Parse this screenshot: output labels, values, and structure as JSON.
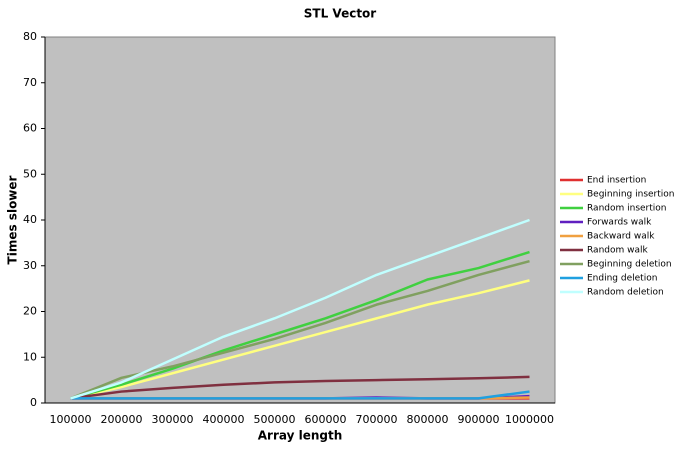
{
  "chart_data": {
    "type": "line",
    "title": "STL Vector",
    "x_label": "Array length",
    "y_label": "Times slower",
    "categories": [
      "100000",
      "200000",
      "300000",
      "400000",
      "500000",
      "600000",
      "700000",
      "800000",
      "900000",
      "1000000"
    ],
    "ylim": [
      0,
      80
    ],
    "yticks": [
      0,
      10,
      20,
      30,
      40,
      50,
      60,
      70,
      80
    ],
    "grid": false,
    "plot_background": "#c0c0c0",
    "legend": "right",
    "series": [
      {
        "name": "End insertion",
        "color": "#e03030",
        "values": [
          1,
          1,
          1,
          1,
          1,
          1,
          1,
          1,
          1,
          1
        ]
      },
      {
        "name": "Beginning insertion",
        "color": "#ffff80",
        "values": [
          1,
          3.5,
          6.5,
          9.5,
          12.5,
          15.5,
          18.5,
          21.5,
          24,
          26.8
        ]
      },
      {
        "name": "Random insertion",
        "color": "#40d040",
        "values": [
          1,
          4,
          7.5,
          11.5,
          15,
          18.5,
          22.5,
          27,
          29.5,
          33
        ]
      },
      {
        "name": "Forwards walk",
        "color": "#6020c0",
        "values": [
          1,
          1,
          1,
          1,
          1,
          1,
          1.2,
          1,
          1,
          1.5
        ]
      },
      {
        "name": "Backward walk",
        "color": "#f0a040",
        "values": [
          1,
          1,
          1,
          1,
          1,
          1,
          1,
          1,
          1,
          1.2
        ]
      },
      {
        "name": "Random walk",
        "color": "#803040",
        "values": [
          1,
          2.5,
          3.3,
          4,
          4.5,
          4.8,
          5,
          5.2,
          5.4,
          5.7
        ]
      },
      {
        "name": "Beginning deletion",
        "color": "#80a060",
        "values": [
          1,
          5.5,
          8,
          11,
          14,
          17.5,
          21.5,
          24.5,
          28,
          31
        ]
      },
      {
        "name": "Ending deletion",
        "color": "#20a0e0",
        "values": [
          1,
          1,
          1,
          1,
          1,
          1,
          1,
          1,
          1,
          2.5
        ]
      },
      {
        "name": "Random deletion",
        "color": "#c0ffff",
        "values": [
          1,
          4.5,
          9.5,
          14.5,
          18.5,
          23,
          28,
          32,
          36,
          40
        ]
      }
    ]
  }
}
